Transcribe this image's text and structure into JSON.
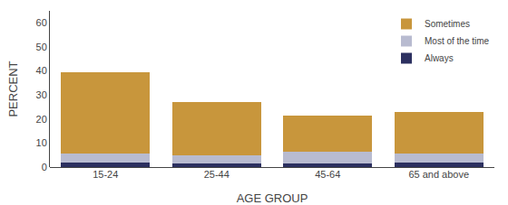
{
  "chart_data": {
    "type": "bar",
    "stacked": true,
    "categories": [
      "15-24",
      "25-44",
      "45-64",
      "65 and above"
    ],
    "series": [
      {
        "name": "Always",
        "color": "#2C3060",
        "values": [
          2.0,
          1.5,
          1.5,
          2.0
        ]
      },
      {
        "name": "Most of the time",
        "color": "#B8BBD0",
        "values": [
          3.5,
          3.5,
          5.0,
          3.5
        ]
      },
      {
        "name": "Sometimes",
        "color": "#C8963C",
        "values": [
          34.0,
          22.0,
          15.0,
          17.5
        ]
      }
    ],
    "xlabel": "AGE GROUP",
    "ylabel": "PERCENT",
    "ylim": [
      0,
      65
    ],
    "yticks": [
      0,
      10,
      20,
      30,
      40,
      50,
      60
    ],
    "grid": false,
    "legend": "upper right"
  }
}
